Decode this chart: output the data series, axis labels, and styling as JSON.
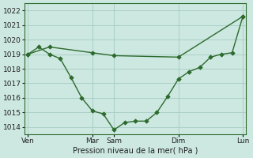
{
  "xlabel": "Pression niveau de la mer( hPa )",
  "bg_color": "#cce8e0",
  "line_color": "#2d6a2d",
  "grid_color": "#aacfc8",
  "ylim": [
    1013.5,
    1022.5
  ],
  "yticks": [
    1014,
    1015,
    1016,
    1017,
    1018,
    1019,
    1020,
    1021,
    1022
  ],
  "xlim": [
    -0.3,
    20.3
  ],
  "x_ticks_pos": [
    0,
    6,
    8,
    14,
    20
  ],
  "x_tick_labels": [
    "Ven",
    "Mar",
    "Sam",
    "Dim",
    "Lun"
  ],
  "line1_x": [
    0,
    1,
    2,
    3,
    4,
    5,
    6,
    7,
    8,
    9,
    10,
    11,
    12,
    13,
    14,
    15,
    16,
    17,
    18,
    19,
    20
  ],
  "line1_y": [
    1019.0,
    1019.5,
    1019.0,
    1018.7,
    1017.4,
    1016.0,
    1015.1,
    1014.9,
    1013.8,
    1014.3,
    1014.4,
    1014.4,
    1015.0,
    1016.1,
    1017.3,
    1017.8,
    1018.1,
    1018.8,
    1019.0,
    1019.1,
    1021.6
  ],
  "line2_x": [
    0,
    2,
    6,
    8,
    14,
    20
  ],
  "line2_y": [
    1019.0,
    1019.5,
    1019.1,
    1018.9,
    1018.8,
    1021.6
  ],
  "marker_size": 2.8,
  "line_width": 1.0
}
